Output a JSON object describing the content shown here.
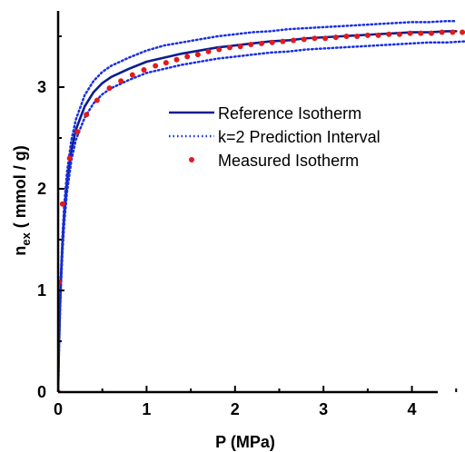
{
  "chart_data": {
    "type": "line",
    "title": "",
    "xlabel": "P (MPa)",
    "ylabel": {
      "main": "n",
      "subscript": "ex",
      "rest": " ( mmol / g)"
    },
    "xlim": [
      0,
      4.6
    ],
    "ylim": [
      0,
      3.75
    ],
    "xticks": [
      "0",
      "1",
      "2",
      "3",
      "4"
    ],
    "yticks": [
      "0",
      "1",
      "2",
      "3"
    ],
    "grid": false,
    "legend_position": "center-right",
    "series": [
      {
        "name": "Reference Isotherm",
        "style": "solid",
        "color": "#0b1d8f",
        "x": [
          0,
          0.01,
          0.02,
          0.03,
          0.05,
          0.07,
          0.1,
          0.15,
          0.2,
          0.3,
          0.4,
          0.5,
          0.6,
          0.8,
          1.0,
          1.2,
          1.4,
          1.6,
          1.8,
          2.0,
          2.2,
          2.4,
          2.6,
          2.8,
          3.0,
          3.2,
          3.4,
          3.6,
          3.8,
          4.0,
          4.2,
          4.4,
          4.5
        ],
        "y": [
          0,
          0.46,
          0.8,
          1.07,
          1.47,
          1.76,
          2.06,
          2.38,
          2.58,
          2.81,
          2.95,
          3.04,
          3.1,
          3.18,
          3.25,
          3.29,
          3.33,
          3.36,
          3.39,
          3.41,
          3.43,
          3.45,
          3.46,
          3.48,
          3.49,
          3.5,
          3.51,
          3.52,
          3.53,
          3.54,
          3.54,
          3.55,
          3.55
        ]
      },
      {
        "name": "k=2 Prediction Interval",
        "style": "dotted",
        "color": "#1a2fe0",
        "bounds": [
          {
            "label": "upper",
            "x": [
              0,
              0.01,
              0.02,
              0.03,
              0.05,
              0.07,
              0.1,
              0.15,
              0.2,
              0.3,
              0.4,
              0.5,
              0.6,
              0.8,
              1.0,
              1.2,
              1.4,
              1.6,
              1.8,
              2.0,
              2.2,
              2.4,
              2.6,
              2.8,
              3.0,
              3.2,
              3.4,
              3.6,
              3.8,
              4.0,
              4.2,
              4.4,
              4.5
            ],
            "y": [
              0,
              0.5,
              0.86,
              1.14,
              1.55,
              1.85,
              2.16,
              2.48,
              2.68,
              2.92,
              3.06,
              3.15,
              3.21,
              3.29,
              3.36,
              3.41,
              3.44,
              3.47,
              3.5,
              3.52,
              3.54,
              3.55,
              3.57,
              3.58,
              3.59,
              3.6,
              3.61,
              3.62,
              3.63,
              3.64,
              3.64,
              3.65,
              3.65
            ]
          },
          {
            "label": "lower",
            "x": [
              0,
              0.01,
              0.02,
              0.03,
              0.05,
              0.07,
              0.1,
              0.15,
              0.2,
              0.3,
              0.4,
              0.5,
              0.6,
              0.8,
              1.0,
              1.2,
              1.4,
              1.6,
              1.8,
              2.0,
              2.2,
              2.4,
              2.6,
              2.8,
              3.0,
              3.2,
              3.4,
              3.6,
              3.8,
              4.0,
              4.2,
              4.4,
              4.6,
              4.75
            ],
            "y": [
              0,
              0.42,
              0.74,
              1.0,
              1.39,
              1.67,
              1.96,
              2.28,
              2.48,
              2.7,
              2.84,
              2.93,
              2.99,
              3.07,
              3.14,
              3.18,
              3.22,
              3.25,
              3.28,
              3.3,
              3.32,
              3.34,
              3.35,
              3.37,
              3.38,
              3.39,
              3.4,
              3.41,
              3.42,
              3.43,
              3.44,
              3.44,
              3.45,
              3.45
            ]
          }
        ]
      },
      {
        "name": "Measured Isotherm",
        "style": "markers",
        "color": "#e31a1c",
        "x": [
          0,
          0.01,
          0.05,
          0.13,
          0.22,
          0.32,
          0.44,
          0.58,
          0.71,
          0.84,
          0.97,
          1.1,
          1.22,
          1.34,
          1.46,
          1.58,
          1.7,
          1.82,
          1.94,
          2.06,
          2.18,
          2.3,
          2.42,
          2.54,
          2.66,
          2.78,
          2.9,
          3.02,
          3.14,
          3.26,
          3.38,
          3.5,
          3.62,
          3.74,
          3.86,
          3.98,
          4.1,
          4.22,
          4.34,
          4.46,
          4.57
        ],
        "y": [
          0,
          1.08,
          1.85,
          2.3,
          2.56,
          2.73,
          2.87,
          2.99,
          3.06,
          3.12,
          3.17,
          3.21,
          3.24,
          3.27,
          3.3,
          3.32,
          3.35,
          3.37,
          3.39,
          3.4,
          3.42,
          3.43,
          3.44,
          3.45,
          3.46,
          3.47,
          3.48,
          3.48,
          3.49,
          3.5,
          3.5,
          3.51,
          3.51,
          3.52,
          3.52,
          3.53,
          3.53,
          3.53,
          3.54,
          3.54,
          3.54
        ]
      }
    ]
  }
}
